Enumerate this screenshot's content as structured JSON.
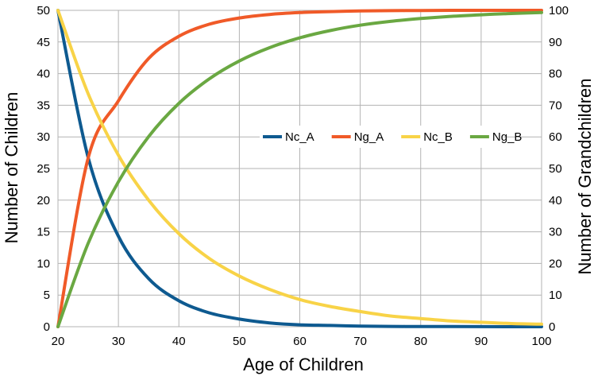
{
  "chart_data": {
    "type": "line",
    "xlabel": "Age of Children",
    "ylabel": "Number of Children",
    "y2label": "Number of Grandchildren",
    "xlim": [
      20,
      100
    ],
    "ylim": [
      0,
      50
    ],
    "y2lim": [
      0,
      100
    ],
    "xticks": [
      20,
      30,
      40,
      50,
      60,
      70,
      80,
      90,
      100
    ],
    "yticks": [
      0,
      5,
      10,
      15,
      20,
      25,
      30,
      35,
      40,
      45,
      50
    ],
    "y2ticks": [
      0,
      10,
      20,
      30,
      40,
      50,
      60,
      70,
      80,
      90,
      100
    ],
    "grid": true,
    "legend": "center-right",
    "x": [
      20,
      25,
      30,
      35,
      40,
      45,
      50,
      55,
      60,
      65,
      70,
      75,
      80,
      85,
      90,
      95,
      100
    ],
    "series": [
      {
        "name": "Nc_A",
        "axis": "left",
        "color": "#0e5a90",
        "values": [
          50,
          26.7,
          14.3,
          7.6,
          4.1,
          2.2,
          1.2,
          0.6,
          0.3,
          0.2,
          0.1,
          0.05,
          0.03,
          0.02,
          0.01,
          0,
          0
        ]
      },
      {
        "name": "Ng_A",
        "axis": "right",
        "color": "#f05a28",
        "values": [
          0,
          53.4,
          71.4,
          84.8,
          91.8,
          95.6,
          97.6,
          98.7,
          99.3,
          99.6,
          99.8,
          99.9,
          99.95,
          100,
          100,
          100,
          100
        ]
      },
      {
        "name": "Nc_B",
        "axis": "left",
        "color": "#f8d347",
        "values": [
          50,
          36.8,
          27.1,
          20.0,
          14.7,
          10.8,
          8.0,
          5.9,
          4.3,
          3.2,
          2.4,
          1.7,
          1.3,
          0.9,
          0.7,
          0.5,
          0.4
        ]
      },
      {
        "name": "Ng_B",
        "axis": "right",
        "color": "#6aa842",
        "values": [
          0,
          26.4,
          45.8,
          60.1,
          70.6,
          78.3,
          84.0,
          88.2,
          91.3,
          93.6,
          95.3,
          96.5,
          97.4,
          98.1,
          98.6,
          99.0,
          99.3
        ]
      }
    ]
  }
}
